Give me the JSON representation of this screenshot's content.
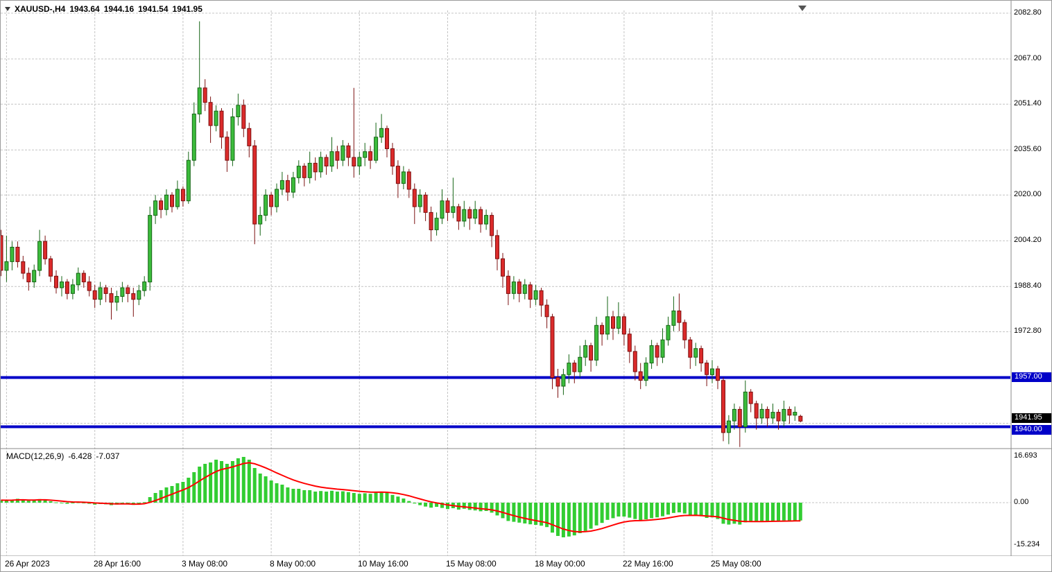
{
  "header": {
    "symbol_period": "XAUUSD-,H4",
    "open": "1943.64",
    "high": "1944.16",
    "low": "1941.54",
    "close": "1941.95"
  },
  "colors": {
    "bull_fill": "#3CBC3C",
    "bull_stroke": "#146414",
    "bear_fill": "#DB2B2B",
    "bear_stroke": "#7C1010",
    "grid": "#C4C4C4",
    "hline": "#0000C8",
    "tag_current_bg": "#000000",
    "tag_level_bg": "#0000C8"
  },
  "chart_data": [
    {
      "type": "candlestick",
      "title": "XAUUSD-,H4",
      "candles": [
        [
          2006,
          2008,
          1992,
          1994
        ],
        [
          1994,
          2006,
          1990,
          1997
        ],
        [
          1997,
          2004,
          1994,
          2002
        ],
        [
          2002,
          2004,
          1995,
          1997
        ],
        [
          1997,
          1999,
          1991,
          1993
        ],
        [
          1993,
          1995,
          1987,
          1990
        ],
        [
          1990,
          1996,
          1988,
          1994
        ],
        [
          1994,
          2008,
          1992,
          2004
        ],
        [
          2004,
          2006,
          1996,
          1998
        ],
        [
          1998,
          1999,
          1990,
          1992
        ],
        [
          1992,
          1994,
          1986,
          1988
        ],
        [
          1988,
          1992,
          1985,
          1990
        ],
        [
          1990,
          1991,
          1984,
          1986
        ],
        [
          1986,
          1991,
          1984,
          1989
        ],
        [
          1989,
          1995,
          1987,
          1993
        ],
        [
          1993,
          1994,
          1988,
          1990
        ],
        [
          1990,
          1992,
          1985,
          1987
        ],
        [
          1987,
          1989,
          1981,
          1984
        ],
        [
          1984,
          1990,
          1982,
          1988
        ],
        [
          1988,
          1989,
          1983,
          1986
        ],
        [
          1986,
          1988,
          1977,
          1983
        ],
        [
          1983,
          1987,
          1980,
          1985
        ],
        [
          1985,
          1990,
          1983,
          1988
        ],
        [
          1988,
          1989,
          1983,
          1986
        ],
        [
          1986,
          1988,
          1978,
          1984
        ],
        [
          1984,
          1989,
          1982,
          1987
        ],
        [
          1987,
          1992,
          1985,
          1990
        ],
        [
          1990,
          2016,
          1987,
          2013
        ],
        [
          2013,
          2020,
          2010,
          2018
        ],
        [
          2018,
          2019,
          2012,
          2015
        ],
        [
          2015,
          2022,
          2013,
          2020
        ],
        [
          2020,
          2021,
          2014,
          2016
        ],
        [
          2016,
          2025,
          2015,
          2022
        ],
        [
          2022,
          2023,
          2016,
          2018
        ],
        [
          2018,
          2035,
          2017,
          2032
        ],
        [
          2032,
          2052,
          2030,
          2048
        ],
        [
          2048,
          2080,
          2045,
          2057
        ],
        [
          2057,
          2060,
          2049,
          2052
        ],
        [
          2052,
          2054,
          2038,
          2044
        ],
        [
          2044,
          2051,
          2042,
          2049
        ],
        [
          2049,
          2050,
          2036,
          2040
        ],
        [
          2040,
          2042,
          2028,
          2032
        ],
        [
          2032,
          2050,
          2030,
          2047
        ],
        [
          2047,
          2055,
          2044,
          2051
        ],
        [
          2051,
          2053,
          2040,
          2043
        ],
        [
          2043,
          2045,
          2033,
          2037
        ],
        [
          2037,
          2039,
          2003,
          2010
        ],
        [
          2010,
          2016,
          2006,
          2013
        ],
        [
          2013,
          2022,
          2011,
          2020
        ],
        [
          2020,
          2021,
          2013,
          2016
        ],
        [
          2016,
          2024,
          2014,
          2022
        ],
        [
          2022,
          2028,
          2020,
          2025
        ],
        [
          2025,
          2027,
          2018,
          2021
        ],
        [
          2021,
          2028,
          2019,
          2026
        ],
        [
          2026,
          2032,
          2024,
          2030
        ],
        [
          2030,
          2031,
          2023,
          2026
        ],
        [
          2026,
          2035,
          2024,
          2031
        ],
        [
          2031,
          2033,
          2025,
          2028
        ],
        [
          2028,
          2035,
          2026,
          2033
        ],
        [
          2033,
          2034,
          2027,
          2030
        ],
        [
          2030,
          2040,
          2028,
          2035
        ],
        [
          2035,
          2037,
          2029,
          2032
        ],
        [
          2032,
          2039,
          2030,
          2037
        ],
        [
          2037,
          2038,
          2030,
          2033
        ],
        [
          2033,
          2057,
          2026,
          2030
        ],
        [
          2030,
          2035,
          2027,
          2033
        ],
        [
          2033,
          2038,
          2030,
          2035
        ],
        [
          2035,
          2037,
          2029,
          2032
        ],
        [
          2032,
          2045,
          2031,
          2040
        ],
        [
          2040,
          2048,
          2038,
          2043
        ],
        [
          2043,
          2044,
          2033,
          2036
        ],
        [
          2036,
          2038,
          2027,
          2030
        ],
        [
          2030,
          2032,
          2019,
          2024
        ],
        [
          2024,
          2030,
          2022,
          2028
        ],
        [
          2028,
          2029,
          2019,
          2022
        ],
        [
          2022,
          2024,
          2010,
          2016
        ],
        [
          2016,
          2022,
          2014,
          2020
        ],
        [
          2020,
          2021,
          2011,
          2014
        ],
        [
          2014,
          2016,
          2004,
          2008
        ],
        [
          2008,
          2014,
          2006,
          2012
        ],
        [
          2012,
          2022,
          2010,
          2018
        ],
        [
          2018,
          2019,
          2011,
          2014
        ],
        [
          2014,
          2026,
          2012,
          2016
        ],
        [
          2016,
          2017,
          2008,
          2011
        ],
        [
          2011,
          2018,
          2009,
          2015
        ],
        [
          2015,
          2016,
          2008,
          2012
        ],
        [
          2012,
          2018,
          2010,
          2015
        ],
        [
          2015,
          2016,
          2007,
          2010
        ],
        [
          2010,
          2015,
          2008,
          2013
        ],
        [
          2013,
          2014,
          2002,
          2006
        ],
        [
          2006,
          2008,
          1994,
          1998
        ],
        [
          1998,
          2000,
          1988,
          1992
        ],
        [
          1992,
          1994,
          1982,
          1986
        ],
        [
          1986,
          1992,
          1984,
          1990
        ],
        [
          1990,
          1991,
          1983,
          1986
        ],
        [
          1986,
          1991,
          1984,
          1989
        ],
        [
          1989,
          1990,
          1981,
          1984
        ],
        [
          1984,
          1989,
          1982,
          1987
        ],
        [
          1987,
          1988,
          1978,
          1982
        ],
        [
          1982,
          1984,
          1974,
          1978
        ],
        [
          1978,
          1979,
          1953,
          1957
        ],
        [
          1957,
          1960,
          1950,
          1954
        ],
        [
          1954,
          1960,
          1951,
          1958
        ],
        [
          1958,
          1965,
          1955,
          1962
        ],
        [
          1962,
          1963,
          1955,
          1959
        ],
        [
          1959,
          1968,
          1957,
          1964
        ],
        [
          1964,
          1970,
          1961,
          1968
        ],
        [
          1968,
          1969,
          1959,
          1963
        ],
        [
          1963,
          1978,
          1961,
          1975
        ],
        [
          1975,
          1976,
          1968,
          1972
        ],
        [
          1972,
          1985,
          1970,
          1978
        ],
        [
          1978,
          1980,
          1970,
          1974
        ],
        [
          1974,
          1983,
          1972,
          1978
        ],
        [
          1978,
          1979,
          1968,
          1972
        ],
        [
          1972,
          1974,
          1962,
          1966
        ],
        [
          1966,
          1968,
          1956,
          1959
        ],
        [
          1959,
          1962,
          1953,
          1956
        ],
        [
          1956,
          1964,
          1954,
          1962
        ],
        [
          1962,
          1970,
          1960,
          1968
        ],
        [
          1968,
          1969,
          1961,
          1964
        ],
        [
          1964,
          1974,
          1962,
          1970
        ],
        [
          1970,
          1978,
          1968,
          1975
        ],
        [
          1975,
          1985,
          1973,
          1980
        ],
        [
          1980,
          1986,
          1973,
          1976
        ],
        [
          1976,
          1977,
          1967,
          1970
        ],
        [
          1970,
          1971,
          1960,
          1964
        ],
        [
          1964,
          1969,
          1961,
          1967
        ],
        [
          1967,
          1968,
          1959,
          1962
        ],
        [
          1962,
          1963,
          1954,
          1958
        ],
        [
          1958,
          1963,
          1955,
          1960
        ],
        [
          1960,
          1961,
          1953,
          1956
        ],
        [
          1956,
          1957,
          1935,
          1938
        ],
        [
          1938,
          1944,
          1934,
          1942
        ],
        [
          1942,
          1948,
          1939,
          1946
        ],
        [
          1946,
          1947,
          1933,
          1940
        ],
        [
          1940,
          1956,
          1938,
          1952
        ],
        [
          1952,
          1953,
          1945,
          1948
        ],
        [
          1948,
          1949,
          1939,
          1943
        ],
        [
          1943,
          1948,
          1941,
          1946
        ],
        [
          1946,
          1947,
          1940,
          1943
        ],
        [
          1943,
          1948,
          1941,
          1945
        ],
        [
          1945,
          1946,
          1939,
          1942
        ],
        [
          1942,
          1949,
          1940,
          1946
        ],
        [
          1946,
          1947,
          1941,
          1944
        ],
        [
          1944,
          1947,
          1942,
          1945
        ],
        [
          1943.64,
          1944.16,
          1941.54,
          1941.95
        ]
      ],
      "y_axis": {
        "ticks": [
          {
            "label": "2082.80",
            "value": 2082.8
          },
          {
            "label": "2067.00",
            "value": 2067.0
          },
          {
            "label": "2051.40",
            "value": 2051.4
          },
          {
            "label": "2035.60",
            "value": 2035.6
          },
          {
            "label": "2020.00",
            "value": 2020.0
          },
          {
            "label": "2004.20",
            "value": 2004.2
          },
          {
            "label": "1988.40",
            "value": 1988.4
          },
          {
            "label": "1972.80",
            "value": 1972.8
          }
        ],
        "grid_levels": [
          2082.8,
          2067.0,
          2051.4,
          2035.6,
          2020.0,
          2004.2,
          1988.4,
          1972.8,
          1941.2
        ],
        "tags": [
          {
            "label": "1957.00",
            "value": 1957.0,
            "bg": "#0000C8",
            "name": "price-tag-level-1957",
            "offset": -7
          },
          {
            "label": "1941.95",
            "value": 1941.95,
            "bg": "#000000",
            "name": "price-tag-current-price",
            "offset": -11
          },
          {
            "label": "1940.00",
            "value": 1940.0,
            "bg": "#0000C8",
            "name": "price-tag-level-1940",
            "offset": -3
          }
        ],
        "ylim": [
          1932,
          2087
        ]
      },
      "x_axis": {
        "labels": [
          {
            "text": "26 Apr 2023",
            "bar": 1
          },
          {
            "text": "28 Apr 16:00",
            "bar": 17
          },
          {
            "text": "3 May 08:00",
            "bar": 33
          },
          {
            "text": "8 May 00:00",
            "bar": 49
          },
          {
            "text": "10 May 16:00",
            "bar": 65
          },
          {
            "text": "15 May 08:00",
            "bar": 81
          },
          {
            "text": "18 May 00:00",
            "bar": 97
          },
          {
            "text": "22 May 16:00",
            "bar": 113
          },
          {
            "text": "25 May 08:00",
            "bar": 129
          }
        ]
      },
      "hlines": [
        {
          "value": 1957.0,
          "width": 4,
          "color": "#0000C8",
          "name": "horizontal-line-1957"
        },
        {
          "value": 1940.0,
          "width": 4,
          "color": "#0000C8",
          "name": "horizontal-line-1940"
        }
      ]
    },
    {
      "type": "bar",
      "title": "MACD(12,26,9)",
      "value_main": "-6.428",
      "value_signal": "-7.037",
      "signal_period": 9,
      "color_histogram": "#32CD32",
      "color_signal": "#FF0000",
      "y_ticks": [
        {
          "label": "16.693",
          "value": 16.693
        },
        {
          "label": "0.00",
          "value": 0
        },
        {
          "label": "-15.234",
          "value": -15.234
        }
      ],
      "ylim": [
        -15.234,
        16.693
      ],
      "histogram": [
        0.9,
        0.8,
        1.0,
        1.4,
        1.1,
        0.7,
        0.9,
        1.3,
        1.0,
        0.5,
        0.1,
        -0.2,
        -0.4,
        -0.2,
        0.1,
        -0.1,
        -0.4,
        -0.7,
        -0.5,
        -0.6,
        -0.9,
        -0.7,
        -0.4,
        -0.5,
        -0.8,
        -0.5,
        0.2,
        2.0,
        3.5,
        4.5,
        5.5,
        6.0,
        7.0,
        7.5,
        9.0,
        11.0,
        13.0,
        14.0,
        14.5,
        15.5,
        15.0,
        14.0,
        15.0,
        16.0,
        16.5,
        15.5,
        12.5,
        10.5,
        9.5,
        8.0,
        7.0,
        6.5,
        5.5,
        5.0,
        5.0,
        4.5,
        4.5,
        4.0,
        4.2,
        4.0,
        4.3,
        4.0,
        4.1,
        3.8,
        3.5,
        3.2,
        3.4,
        3.2,
        3.6,
        4.0,
        3.5,
        2.8,
        2.2,
        1.5,
        0.6,
        -0.3,
        -0.9,
        -1.4,
        -1.8,
        -1.5,
        -1.9,
        -2.3,
        -2.0,
        -2.5,
        -2.2,
        -2.6,
        -2.8,
        -3.1,
        -3.0,
        -3.6,
        -4.6,
        -5.6,
        -6.6,
        -6.9,
        -7.2,
        -7.5,
        -7.8,
        -8.0,
        -8.3,
        -8.8,
        -10.8,
        -12.0,
        -12.5,
        -12.2,
        -11.8,
        -11.0,
        -10.2,
        -9.4,
        -8.2,
        -7.3,
        -6.2,
        -5.6,
        -5.0,
        -5.0,
        -5.4,
        -5.9,
        -6.3,
        -6.0,
        -5.6,
        -5.3,
        -4.9,
        -4.3,
        -3.7,
        -3.5,
        -3.9,
        -4.5,
        -4.5,
        -4.9,
        -5.5,
        -5.3,
        -5.9,
        -7.6,
        -7.9,
        -7.6,
        -7.9,
        -7.1,
        -6.9,
        -7.0,
        -6.7,
        -6.7,
        -6.5,
        -6.6,
        -6.4,
        -6.5,
        -6.45,
        -6.428
      ]
    }
  ]
}
